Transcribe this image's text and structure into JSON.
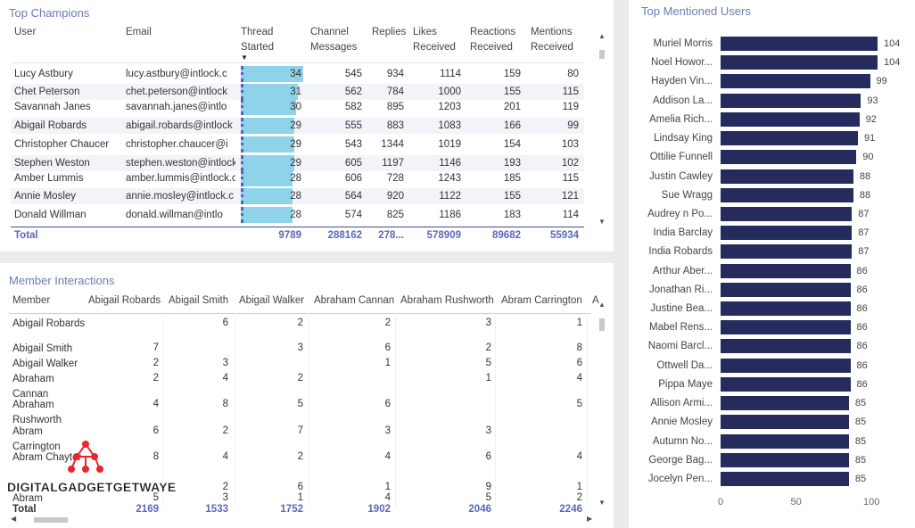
{
  "top_champions": {
    "title": "Top Champions",
    "columns": [
      "User",
      "Email",
      "Thread Started",
      "Channel Messages",
      "Replies",
      "Likes Received",
      "Reactions Received",
      "Mentions Received"
    ],
    "rows": [
      [
        "Lucy Astbury",
        "lucy.astbury@intlock.c",
        34,
        545,
        934,
        1114,
        159,
        80
      ],
      [
        "Chet Peterson",
        "chet.peterson@intlock",
        31,
        562,
        784,
        1000,
        155,
        115
      ],
      [
        "Savannah Janes",
        "savannah.janes@intlo",
        30,
        582,
        895,
        1203,
        201,
        119
      ],
      [
        "Abigail Robards",
        "abigail.robards@intlock",
        29,
        555,
        883,
        1083,
        166,
        99
      ],
      [
        "Christopher Chaucer",
        "christopher.chaucer@i",
        29,
        543,
        1344,
        1019,
        154,
        103
      ],
      [
        "Stephen Weston",
        "stephen.weston@intlock",
        29,
        605,
        1197,
        1146,
        193,
        102
      ],
      [
        "Amber Lummis",
        "amber.lummis@intlock.c",
        28,
        606,
        728,
        1243,
        185,
        115
      ],
      [
        "Annie Mosley",
        "annie.mosley@intlock.c",
        28,
        564,
        920,
        1122,
        155,
        121
      ],
      [
        "Donald Willman",
        "donald.willman@intlo",
        28,
        574,
        825,
        1186,
        183,
        114
      ]
    ],
    "total": {
      "label": "Total",
      "values": [
        9789,
        288162,
        "278...",
        578909,
        89682,
        55934
      ]
    }
  },
  "member_interactions": {
    "title": "Member Interactions",
    "columns": [
      "Member",
      "Abigail Robards",
      "Abigail Smith",
      "Abigail Walker",
      "Abraham Cannan",
      "Abraham Rushworth",
      "Abram Carrington",
      "A"
    ],
    "rows": [
      {
        "member": "Abigail Robards",
        "values": [
          null,
          6,
          2,
          2,
          3,
          1
        ]
      },
      {
        "member": "Abigail Smith",
        "values": [
          7,
          null,
          3,
          6,
          2,
          8
        ]
      },
      {
        "member": "Abigail Walker",
        "values": [
          2,
          3,
          null,
          1,
          5,
          6
        ]
      },
      {
        "member": "Abraham Cannan",
        "values": [
          2,
          4,
          2,
          null,
          1,
          4
        ]
      },
      {
        "member": "Abraham Rushworth",
        "values": [
          4,
          8,
          5,
          6,
          null,
          5
        ]
      },
      {
        "member": "Abram Carrington",
        "values": [
          6,
          2,
          7,
          3,
          3,
          null
        ]
      },
      {
        "member": "Abram Chaytor",
        "values": [
          8,
          4,
          2,
          4,
          6,
          4
        ]
      },
      {
        "member": null,
        "values": [
          null,
          2,
          6,
          1,
          9,
          1
        ]
      },
      {
        "member": "Abram",
        "values": [
          5,
          3,
          1,
          4,
          5,
          2
        ]
      }
    ],
    "total": {
      "label": "Total",
      "values": [
        2169,
        1533,
        1752,
        1902,
        2046,
        2246
      ]
    }
  },
  "chart_data": {
    "type": "bar",
    "orientation": "horizontal",
    "title": "Top Mentioned Users",
    "categories": [
      "Muriel Morris",
      "Noel Howor...",
      "Hayden Vin...",
      "Addison La...",
      "Amelia Rich...",
      "Lindsay King",
      "Ottilie Funnell",
      "Justin Cawley",
      "Sue Wragg",
      "Audrey n Po...",
      "India Barclay",
      "India Robards",
      "Arthur Aber...",
      "Jonathan Ri...",
      "Justine Bea...",
      "Mabel Rens...",
      "Naomi Barcl...",
      "Ottwell Da...",
      "Pippa Maye",
      "Allison Armi...",
      "Annie Mosley",
      "Autumn No...",
      "George Bag...",
      "Jocelyn Pen..."
    ],
    "values": [
      104,
      104,
      99,
      93,
      92,
      91,
      90,
      88,
      88,
      87,
      87,
      87,
      86,
      86,
      86,
      86,
      86,
      86,
      86,
      85,
      85,
      85,
      85,
      85
    ],
    "color": "#252b5c",
    "xlim": [
      0,
      104
    ],
    "xticks": [
      0,
      50,
      100
    ],
    "grid": false
  },
  "watermark": "DIGITALGADGETGETWAYE"
}
